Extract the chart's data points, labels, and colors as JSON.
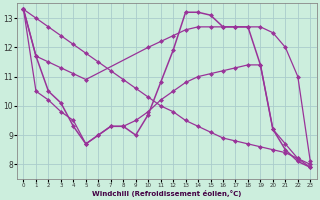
{
  "xlabel": "Windchill (Refroidissement éolien,°C)",
  "bg_color": "#cceedd",
  "grid_color": "#aacccc",
  "ylim": [
    7.5,
    13.5
  ],
  "xlim": [
    -0.5,
    23.5
  ],
  "yticks": [
    8,
    9,
    10,
    11,
    12,
    13
  ],
  "xticks": [
    0,
    1,
    2,
    3,
    4,
    5,
    6,
    7,
    8,
    9,
    10,
    11,
    12,
    13,
    14,
    15,
    16,
    17,
    18,
    19,
    20,
    21,
    22,
    23
  ],
  "series": [
    {
      "x": [
        0,
        1,
        2,
        3,
        4,
        5,
        10,
        11,
        12,
        13,
        14,
        15,
        16,
        17,
        18,
        19,
        20,
        21,
        22,
        23
      ],
      "y": [
        13.3,
        11.7,
        11.5,
        11.3,
        11.1,
        10.9,
        12.0,
        12.2,
        12.4,
        12.6,
        12.7,
        12.7,
        12.7,
        12.7,
        12.7,
        12.7,
        12.5,
        12.0,
        11.0,
        8.1
      ],
      "color": "#993399",
      "style": "-",
      "marker": "D",
      "markersize": 2.0,
      "linewidth": 0.9
    },
    {
      "x": [
        0,
        1,
        2,
        3,
        4,
        5,
        6,
        7,
        8,
        9,
        10,
        11,
        12,
        13,
        14,
        15,
        16,
        17,
        18,
        19,
        20,
        21,
        22,
        23
      ],
      "y": [
        13.3,
        11.7,
        10.5,
        10.1,
        9.3,
        8.7,
        9.0,
        9.3,
        9.3,
        9.0,
        9.7,
        10.8,
        11.9,
        13.2,
        13.2,
        13.1,
        12.7,
        12.7,
        12.7,
        11.4,
        9.2,
        8.5,
        8.1,
        7.9
      ],
      "color": "#993399",
      "style": "-",
      "marker": "D",
      "markersize": 2.0,
      "linewidth": 1.1
    },
    {
      "x": [
        0,
        1,
        2,
        3,
        4,
        5,
        6,
        7,
        8,
        9,
        10,
        11,
        12,
        13,
        14,
        15,
        16,
        17,
        18,
        19,
        20,
        21,
        22,
        23
      ],
      "y": [
        13.3,
        10.5,
        10.2,
        9.8,
        9.5,
        8.7,
        9.0,
        9.3,
        9.3,
        9.5,
        9.8,
        10.2,
        10.5,
        10.8,
        11.0,
        11.1,
        11.2,
        11.3,
        11.4,
        11.4,
        9.2,
        8.7,
        8.2,
        8.0
      ],
      "color": "#993399",
      "style": "-",
      "marker": "D",
      "markersize": 2.0,
      "linewidth": 0.9
    },
    {
      "x": [
        0,
        1,
        2,
        3,
        4,
        5,
        6,
        7,
        8,
        9,
        10,
        11,
        12,
        13,
        14,
        15,
        16,
        17,
        18,
        19,
        20,
        21,
        22,
        23
      ],
      "y": [
        13.3,
        13.0,
        12.7,
        12.4,
        12.1,
        11.8,
        11.5,
        11.2,
        10.9,
        10.6,
        10.3,
        10.0,
        9.8,
        9.5,
        9.3,
        9.1,
        8.9,
        8.8,
        8.7,
        8.6,
        8.5,
        8.4,
        8.2,
        7.9
      ],
      "color": "#993399",
      "style": "-",
      "marker": "D",
      "markersize": 2.0,
      "linewidth": 0.9
    }
  ]
}
